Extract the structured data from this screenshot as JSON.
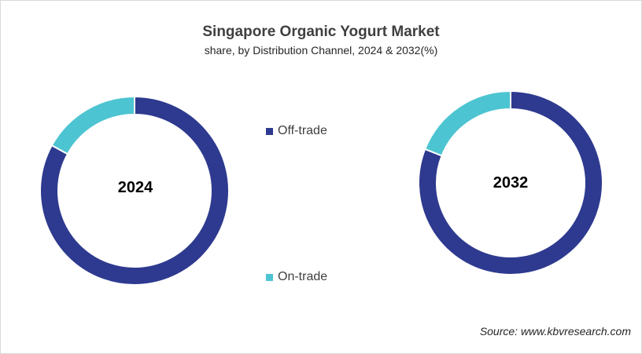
{
  "title": "Singapore Organic Yogurt Market",
  "subtitle": "share, by Distribution Channel, 2024 & 2032(%)",
  "source": "Source: www.kbvresearch.com",
  "colors": {
    "off_trade": "#2e3a8f",
    "on_trade": "#4dc4d1"
  },
  "chart_data": [
    {
      "type": "pie",
      "subtype": "donut",
      "center_label": "2024",
      "categories": [
        "Off-trade",
        "On-trade"
      ],
      "values": [
        83,
        17
      ]
    },
    {
      "type": "pie",
      "subtype": "donut",
      "center_label": "2032",
      "categories": [
        "Off-trade",
        "On-trade"
      ],
      "values": [
        81,
        19
      ]
    }
  ],
  "legend": [
    {
      "label": "Off-trade",
      "color": "#2e3a8f"
    },
    {
      "label": "On-trade",
      "color": "#4dc4d1"
    }
  ]
}
